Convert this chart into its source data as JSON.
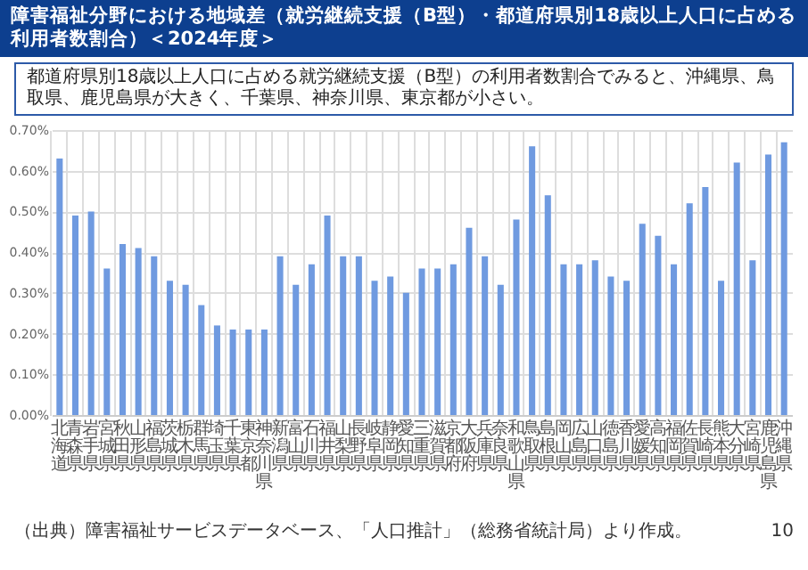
{
  "chart_data": {
    "type": "bar",
    "title": "障害福祉分野における地域差（就労継続支援（B型）・都道府県別18歳以上人口に占める利用者数割合）＜2024年度＞",
    "subtitle": "都道府県別18歳以上人口に占める就労継続支援（B型）の利用者数割合でみると、沖縄県、鳥取県、鹿児島県が大きく、千葉県、神奈川県、東京都が小さい。",
    "categories": [
      "北海道",
      "青森県",
      "岩手県",
      "宮城県",
      "秋田県",
      "山形県",
      "福島県",
      "茨城県",
      "栃木県",
      "群馬県",
      "埼玉県",
      "千葉県",
      "東京都",
      "神奈川県",
      "新潟県",
      "富山県",
      "石川県",
      "福井県",
      "山梨県",
      "長野県",
      "岐阜県",
      "静岡県",
      "愛知県",
      "三重県",
      "滋賀県",
      "京都府",
      "大阪府",
      "兵庫県",
      "奈良県",
      "和歌山県",
      "鳥取県",
      "島根県",
      "岡山県",
      "広島県",
      "山口県",
      "徳島県",
      "香川県",
      "愛媛県",
      "高知県",
      "福岡県",
      "佐賀県",
      "長崎県",
      "熊本県",
      "大分県",
      "宮崎県",
      "鹿児島県",
      "沖縄県"
    ],
    "values": [
      0.63,
      0.49,
      0.5,
      0.36,
      0.42,
      0.41,
      0.39,
      0.33,
      0.32,
      0.27,
      0.22,
      0.21,
      0.21,
      0.21,
      0.39,
      0.32,
      0.37,
      0.49,
      0.39,
      0.39,
      0.33,
      0.34,
      0.3,
      0.36,
      0.36,
      0.37,
      0.46,
      0.39,
      0.32,
      0.48,
      0.66,
      0.54,
      0.37,
      0.37,
      0.38,
      0.34,
      0.33,
      0.47,
      0.44,
      0.37,
      0.52,
      0.56,
      0.33,
      0.62,
      0.38,
      0.64,
      0.67
    ],
    "color": "#6f9ae0",
    "ylim": [
      0,
      0.7
    ],
    "yticks": [
      {
        "value": 0,
        "label": "0.00%"
      },
      {
        "value": 0.1,
        "label": "0.10%"
      },
      {
        "value": 0.2,
        "label": "0.20%"
      },
      {
        "value": 0.3,
        "label": "0.30%"
      },
      {
        "value": 0.4,
        "label": "0.40%"
      },
      {
        "value": 0.5,
        "label": "0.50%"
      },
      {
        "value": 0.6,
        "label": "0.60%"
      },
      {
        "value": 0.7,
        "label": "0.70%"
      }
    ],
    "grid": true,
    "annotations": [
      "（出典）障害福祉サービスデータベース、「人口推計」（総務省統計局）より作成。",
      "10"
    ]
  }
}
